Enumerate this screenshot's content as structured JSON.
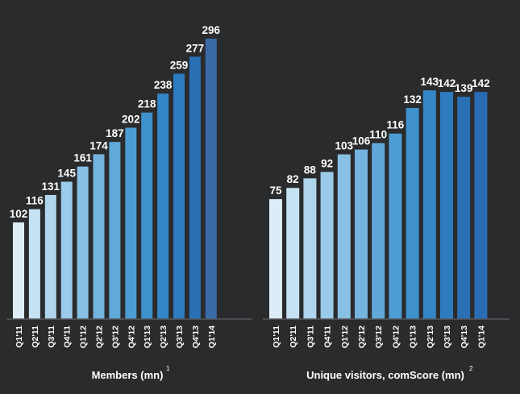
{
  "chart_data": [
    {
      "type": "bar",
      "xlabel": "Members (mn)",
      "footnote": "1",
      "categories": [
        "Q1'11",
        "Q2'11",
        "Q3'11",
        "Q4'11",
        "Q1'12",
        "Q2'12",
        "Q3'12",
        "Q4'12",
        "Q1'13",
        "Q2'13",
        "Q3'13",
        "Q4'13",
        "Q1'14"
      ],
      "values": [
        102,
        116,
        131,
        145,
        161,
        174,
        187,
        202,
        218,
        238,
        259,
        277,
        296
      ],
      "colors": [
        "#dcedf8",
        "#c6e1f3",
        "#b0d5ee",
        "#9ccaea",
        "#88bfe4",
        "#73b3de",
        "#60a8d8",
        "#4d9cd2",
        "#3f91cc",
        "#3586c6",
        "#2e7bbf",
        "#2a70b5",
        "#3a6aa8"
      ]
    },
    {
      "type": "bar",
      "xlabel": "Unique visitors, comScore (mn)",
      "footnote": "2",
      "categories": [
        "Q1'11",
        "Q2'11",
        "Q3'11",
        "Q4'11",
        "Q1'12",
        "Q2'12",
        "Q3'12",
        "Q4'12",
        "Q1'13",
        "Q2'13",
        "Q3'13",
        "Q4'13",
        "Q1'14"
      ],
      "values": [
        75,
        82,
        88,
        92,
        103,
        106,
        110,
        116,
        132,
        143,
        142,
        139,
        142
      ],
      "colors": [
        "#dcedf8",
        "#c6e1f3",
        "#b0d5ee",
        "#9ccaea",
        "#88bfe4",
        "#73b3de",
        "#60a8d8",
        "#4d9cd2",
        "#3f91cc",
        "#3586c6",
        "#2e7bbf",
        "#2a70b5",
        "#2a6cb3"
      ]
    }
  ]
}
